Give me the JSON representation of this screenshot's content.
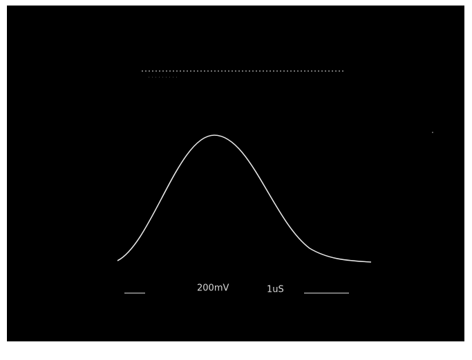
{
  "screen": {
    "volts_per_div": "200mV",
    "time_per_div": "1uS"
  }
}
